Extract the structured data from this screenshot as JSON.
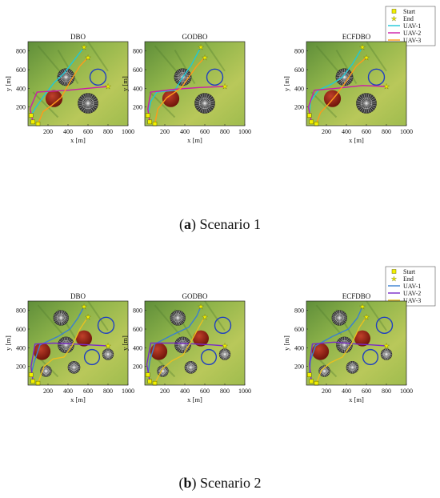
{
  "captions": [
    {
      "letter": "a",
      "text": ") Scenario 1"
    },
    {
      "letter": "b",
      "text": ") Scenario 2"
    }
  ],
  "colors": {
    "uav1": "#1ec8d8",
    "uav2": "#cc1ca8",
    "uav3": "#ff9a1a",
    "uav1_s2": "#3a7fd0",
    "uav2_s2": "#7a2ac8",
    "uav3_s2": "#e8c020",
    "start": "#f2f000",
    "end": "#f2f000",
    "threat_circle": "#2040c0",
    "red_zone": "#8b1a10"
  },
  "chart_data": [
    {
      "type": "line",
      "scenario": "Scenario 1",
      "title": "DBO",
      "xlabel": "x [m]",
      "ylabel": "y [m]",
      "xlim": [
        0,
        1000
      ],
      "ylim": [
        0,
        900
      ],
      "xticks": [
        200,
        400,
        600,
        800,
        1000
      ],
      "yticks": [
        200,
        400,
        600,
        800
      ],
      "legend": {
        "location": "top-right",
        "entries": [
          "Start",
          "End",
          "UAV-1",
          "UAV-2",
          "UAV-3"
        ]
      },
      "starts": [
        [
          30,
          110
        ],
        [
          50,
          40
        ],
        [
          100,
          20
        ]
      ],
      "ends": [
        [
          560,
          840
        ],
        [
          800,
          420
        ],
        [
          600,
          730
        ]
      ],
      "spiked_obstacles": [
        [
          380,
          520,
          85
        ],
        [
          600,
          240,
          100
        ]
      ],
      "red_obstacles": [
        [
          260,
          290,
          85
        ]
      ],
      "threat_circles": [
        [
          700,
          520,
          80
        ]
      ],
      "series": [
        {
          "name": "UAV-1",
          "points": [
            [
              30,
              110
            ],
            [
              80,
              200
            ],
            [
              160,
              320
            ],
            [
              260,
              460
            ],
            [
              360,
              560
            ],
            [
              460,
              700
            ],
            [
              560,
              840
            ]
          ]
        },
        {
          "name": "UAV-2",
          "points": [
            [
              50,
              40
            ],
            [
              20,
              180
            ],
            [
              90,
              360
            ],
            [
              400,
              380
            ],
            [
              600,
              400
            ],
            [
              800,
              420
            ]
          ]
        },
        {
          "name": "UAV-3",
          "points": [
            [
              100,
              20
            ],
            [
              150,
              150
            ],
            [
              240,
              220
            ],
            [
              330,
              300
            ],
            [
              420,
              470
            ],
            [
              520,
              640
            ],
            [
              600,
              730
            ]
          ]
        }
      ]
    },
    {
      "type": "line",
      "scenario": "Scenario 1",
      "title": "GODBO",
      "xlabel": "x [m]",
      "ylabel": "y [m]",
      "xlim": [
        0,
        1000
      ],
      "ylim": [
        0,
        900
      ],
      "xticks": [
        200,
        400,
        600,
        800,
        1000
      ],
      "yticks": [
        200,
        400,
        600,
        800
      ],
      "starts": [
        [
          30,
          110
        ],
        [
          50,
          40
        ],
        [
          100,
          20
        ]
      ],
      "ends": [
        [
          560,
          840
        ],
        [
          800,
          420
        ],
        [
          600,
          730
        ]
      ],
      "spiked_obstacles": [
        [
          380,
          520,
          85
        ],
        [
          600,
          240,
          100
        ]
      ],
      "red_obstacles": [
        [
          260,
          290,
          85
        ]
      ],
      "threat_circles": [
        [
          700,
          520,
          80
        ]
      ],
      "series": [
        {
          "name": "UAV-1",
          "points": [
            [
              30,
              110
            ],
            [
              60,
              260
            ],
            [
              120,
              360
            ],
            [
              300,
              380
            ],
            [
              380,
              520
            ],
            [
              460,
              640
            ],
            [
              560,
              840
            ]
          ]
        },
        {
          "name": "UAV-2",
          "points": [
            [
              50,
              40
            ],
            [
              30,
              180
            ],
            [
              60,
              360
            ],
            [
              300,
              390
            ],
            [
              560,
              410
            ],
            [
              800,
              420
            ]
          ]
        },
        {
          "name": "UAV-3",
          "points": [
            [
              100,
              20
            ],
            [
              130,
              180
            ],
            [
              220,
              300
            ],
            [
              360,
              400
            ],
            [
              440,
              520
            ],
            [
              520,
              640
            ],
            [
              600,
              730
            ]
          ]
        }
      ]
    },
    {
      "type": "line",
      "scenario": "Scenario 1",
      "title": "ECFDBO",
      "xlabel": "x [m]",
      "ylabel": "y [m]",
      "xlim": [
        0,
        1000
      ],
      "ylim": [
        0,
        900
      ],
      "xticks": [
        200,
        400,
        600,
        800,
        1000
      ],
      "yticks": [
        200,
        400,
        600,
        800
      ],
      "starts": [
        [
          30,
          110
        ],
        [
          50,
          40
        ],
        [
          100,
          20
        ]
      ],
      "ends": [
        [
          560,
          840
        ],
        [
          800,
          420
        ],
        [
          600,
          730
        ]
      ],
      "spiked_obstacles": [
        [
          380,
          520,
          85
        ],
        [
          600,
          240,
          100
        ]
      ],
      "red_obstacles": [
        [
          260,
          290,
          85
        ]
      ],
      "threat_circles": [
        [
          700,
          520,
          80
        ]
      ],
      "series": [
        {
          "name": "UAV-1",
          "points": [
            [
              30,
              110
            ],
            [
              40,
              260
            ],
            [
              120,
              380
            ],
            [
              260,
              450
            ],
            [
              360,
              520
            ],
            [
              460,
              660
            ],
            [
              560,
              840
            ]
          ]
        },
        {
          "name": "UAV-2",
          "points": [
            [
              50,
              40
            ],
            [
              20,
              200
            ],
            [
              80,
              380
            ],
            [
              300,
              400
            ],
            [
              560,
              430
            ],
            [
              800,
              420
            ]
          ]
        },
        {
          "name": "UAV-3",
          "points": [
            [
              100,
              20
            ],
            [
              140,
              140
            ],
            [
              220,
              230
            ],
            [
              300,
              330
            ],
            [
              400,
              480
            ],
            [
              500,
              640
            ],
            [
              600,
              730
            ]
          ]
        }
      ]
    },
    {
      "type": "line",
      "scenario": "Scenario 2",
      "title": "DBO",
      "xlabel": "x [m]",
      "ylabel": "y [m]",
      "xlim": [
        0,
        1000
      ],
      "ylim": [
        0,
        900
      ],
      "xticks": [
        200,
        400,
        600,
        800,
        1000
      ],
      "yticks": [
        200,
        400,
        600,
        800
      ],
      "legend": {
        "location": "top-right",
        "entries": [
          "Start",
          "End",
          "UAV-1",
          "UAV-2",
          "UAV-3"
        ]
      },
      "starts": [
        [
          30,
          110
        ],
        [
          50,
          40
        ],
        [
          100,
          20
        ]
      ],
      "ends": [
        [
          560,
          840
        ],
        [
          800,
          420
        ],
        [
          600,
          730
        ]
      ],
      "spiked_obstacles": [
        [
          330,
          720,
          75
        ],
        [
          380,
          430,
          80
        ],
        [
          180,
          150,
          55
        ],
        [
          460,
          190,
          60
        ],
        [
          800,
          330,
          55
        ]
      ],
      "red_obstacles": [
        [
          140,
          360,
          85
        ],
        [
          560,
          500,
          80
        ]
      ],
      "threat_circles": [
        [
          780,
          640,
          80
        ],
        [
          640,
          300,
          75
        ]
      ],
      "series": [
        {
          "name": "UAV-1",
          "points": [
            [
              30,
              110
            ],
            [
              60,
              240
            ],
            [
              120,
              430
            ],
            [
              300,
              520
            ],
            [
              420,
              600
            ],
            [
              500,
              720
            ],
            [
              560,
              840
            ]
          ]
        },
        {
          "name": "UAV-2",
          "points": [
            [
              50,
              40
            ],
            [
              30,
              200
            ],
            [
              70,
              440
            ],
            [
              260,
              450
            ],
            [
              460,
              440
            ],
            [
              620,
              430
            ],
            [
              800,
              420
            ]
          ]
        },
        {
          "name": "UAV-3",
          "points": [
            [
              100,
              20
            ],
            [
              160,
              200
            ],
            [
              250,
              280
            ],
            [
              360,
              300
            ],
            [
              440,
              420
            ],
            [
              520,
              600
            ],
            [
              600,
              730
            ]
          ]
        }
      ]
    },
    {
      "type": "line",
      "scenario": "Scenario 2",
      "title": "GODBO",
      "xlabel": "x [m]",
      "ylabel": "y [m]",
      "xlim": [
        0,
        1000
      ],
      "ylim": [
        0,
        900
      ],
      "xticks": [
        200,
        400,
        600,
        800,
        1000
      ],
      "yticks": [
        200,
        400,
        600,
        800
      ],
      "starts": [
        [
          30,
          110
        ],
        [
          50,
          40
        ],
        [
          100,
          20
        ]
      ],
      "ends": [
        [
          560,
          840
        ],
        [
          800,
          420
        ],
        [
          600,
          730
        ]
      ],
      "spiked_obstacles": [
        [
          330,
          720,
          75
        ],
        [
          380,
          430,
          80
        ],
        [
          180,
          150,
          55
        ],
        [
          460,
          190,
          60
        ],
        [
          800,
          330,
          55
        ]
      ],
      "red_obstacles": [
        [
          140,
          360,
          85
        ],
        [
          560,
          500,
          80
        ]
      ],
      "threat_circles": [
        [
          780,
          640,
          80
        ],
        [
          640,
          300,
          75
        ]
      ],
      "series": [
        {
          "name": "UAV-1",
          "points": [
            [
              30,
              110
            ],
            [
              50,
              260
            ],
            [
              100,
              440
            ],
            [
              280,
              540
            ],
            [
              440,
              620
            ],
            [
              520,
              740
            ],
            [
              560,
              840
            ]
          ]
        },
        {
          "name": "UAV-2",
          "points": [
            [
              50,
              40
            ],
            [
              20,
              220
            ],
            [
              60,
              450
            ],
            [
              300,
              450
            ],
            [
              520,
              440
            ],
            [
              680,
              430
            ],
            [
              800,
              420
            ]
          ]
        },
        {
          "name": "UAV-3",
          "points": [
            [
              100,
              20
            ],
            [
              180,
              180
            ],
            [
              270,
              260
            ],
            [
              380,
              320
            ],
            [
              460,
              460
            ],
            [
              540,
              620
            ],
            [
              600,
              730
            ]
          ]
        }
      ]
    },
    {
      "type": "line",
      "scenario": "Scenario 2",
      "title": "ECFDBO",
      "xlabel": "x [m]",
      "ylabel": "y [m]",
      "xlim": [
        0,
        1000
      ],
      "ylim": [
        0,
        900
      ],
      "xticks": [
        200,
        400,
        600,
        800,
        1000
      ],
      "yticks": [
        200,
        400,
        600,
        800
      ],
      "legend": {
        "location": "top-right",
        "entries": [
          "Start",
          "End",
          "UAV-1",
          "UAV-2",
          "UAV-3"
        ]
      },
      "starts": [
        [
          30,
          110
        ],
        [
          50,
          40
        ],
        [
          100,
          20
        ]
      ],
      "ends": [
        [
          560,
          840
        ],
        [
          800,
          420
        ],
        [
          600,
          730
        ]
      ],
      "spiked_obstacles": [
        [
          330,
          720,
          75
        ],
        [
          380,
          430,
          80
        ],
        [
          180,
          150,
          55
        ],
        [
          460,
          190,
          60
        ],
        [
          800,
          330,
          55
        ]
      ],
      "red_obstacles": [
        [
          140,
          360,
          85
        ],
        [
          560,
          500,
          80
        ]
      ],
      "threat_circles": [
        [
          780,
          640,
          80
        ],
        [
          640,
          300,
          75
        ]
      ],
      "series": [
        {
          "name": "UAV-1",
          "points": [
            [
              30,
              110
            ],
            [
              40,
              260
            ],
            [
              90,
              420
            ],
            [
              260,
              520
            ],
            [
              420,
              600
            ],
            [
              510,
              720
            ],
            [
              560,
              840
            ]
          ]
        },
        {
          "name": "UAV-2",
          "points": [
            [
              50,
              40
            ],
            [
              30,
              220
            ],
            [
              60,
              440
            ],
            [
              280,
              460
            ],
            [
              500,
              440
            ],
            [
              660,
              430
            ],
            [
              800,
              420
            ]
          ]
        },
        {
          "name": "UAV-3",
          "points": [
            [
              100,
              20
            ],
            [
              150,
              160
            ],
            [
              240,
              240
            ],
            [
              360,
              300
            ],
            [
              450,
              440
            ],
            [
              530,
              620
            ],
            [
              600,
              730
            ]
          ]
        }
      ]
    }
  ]
}
